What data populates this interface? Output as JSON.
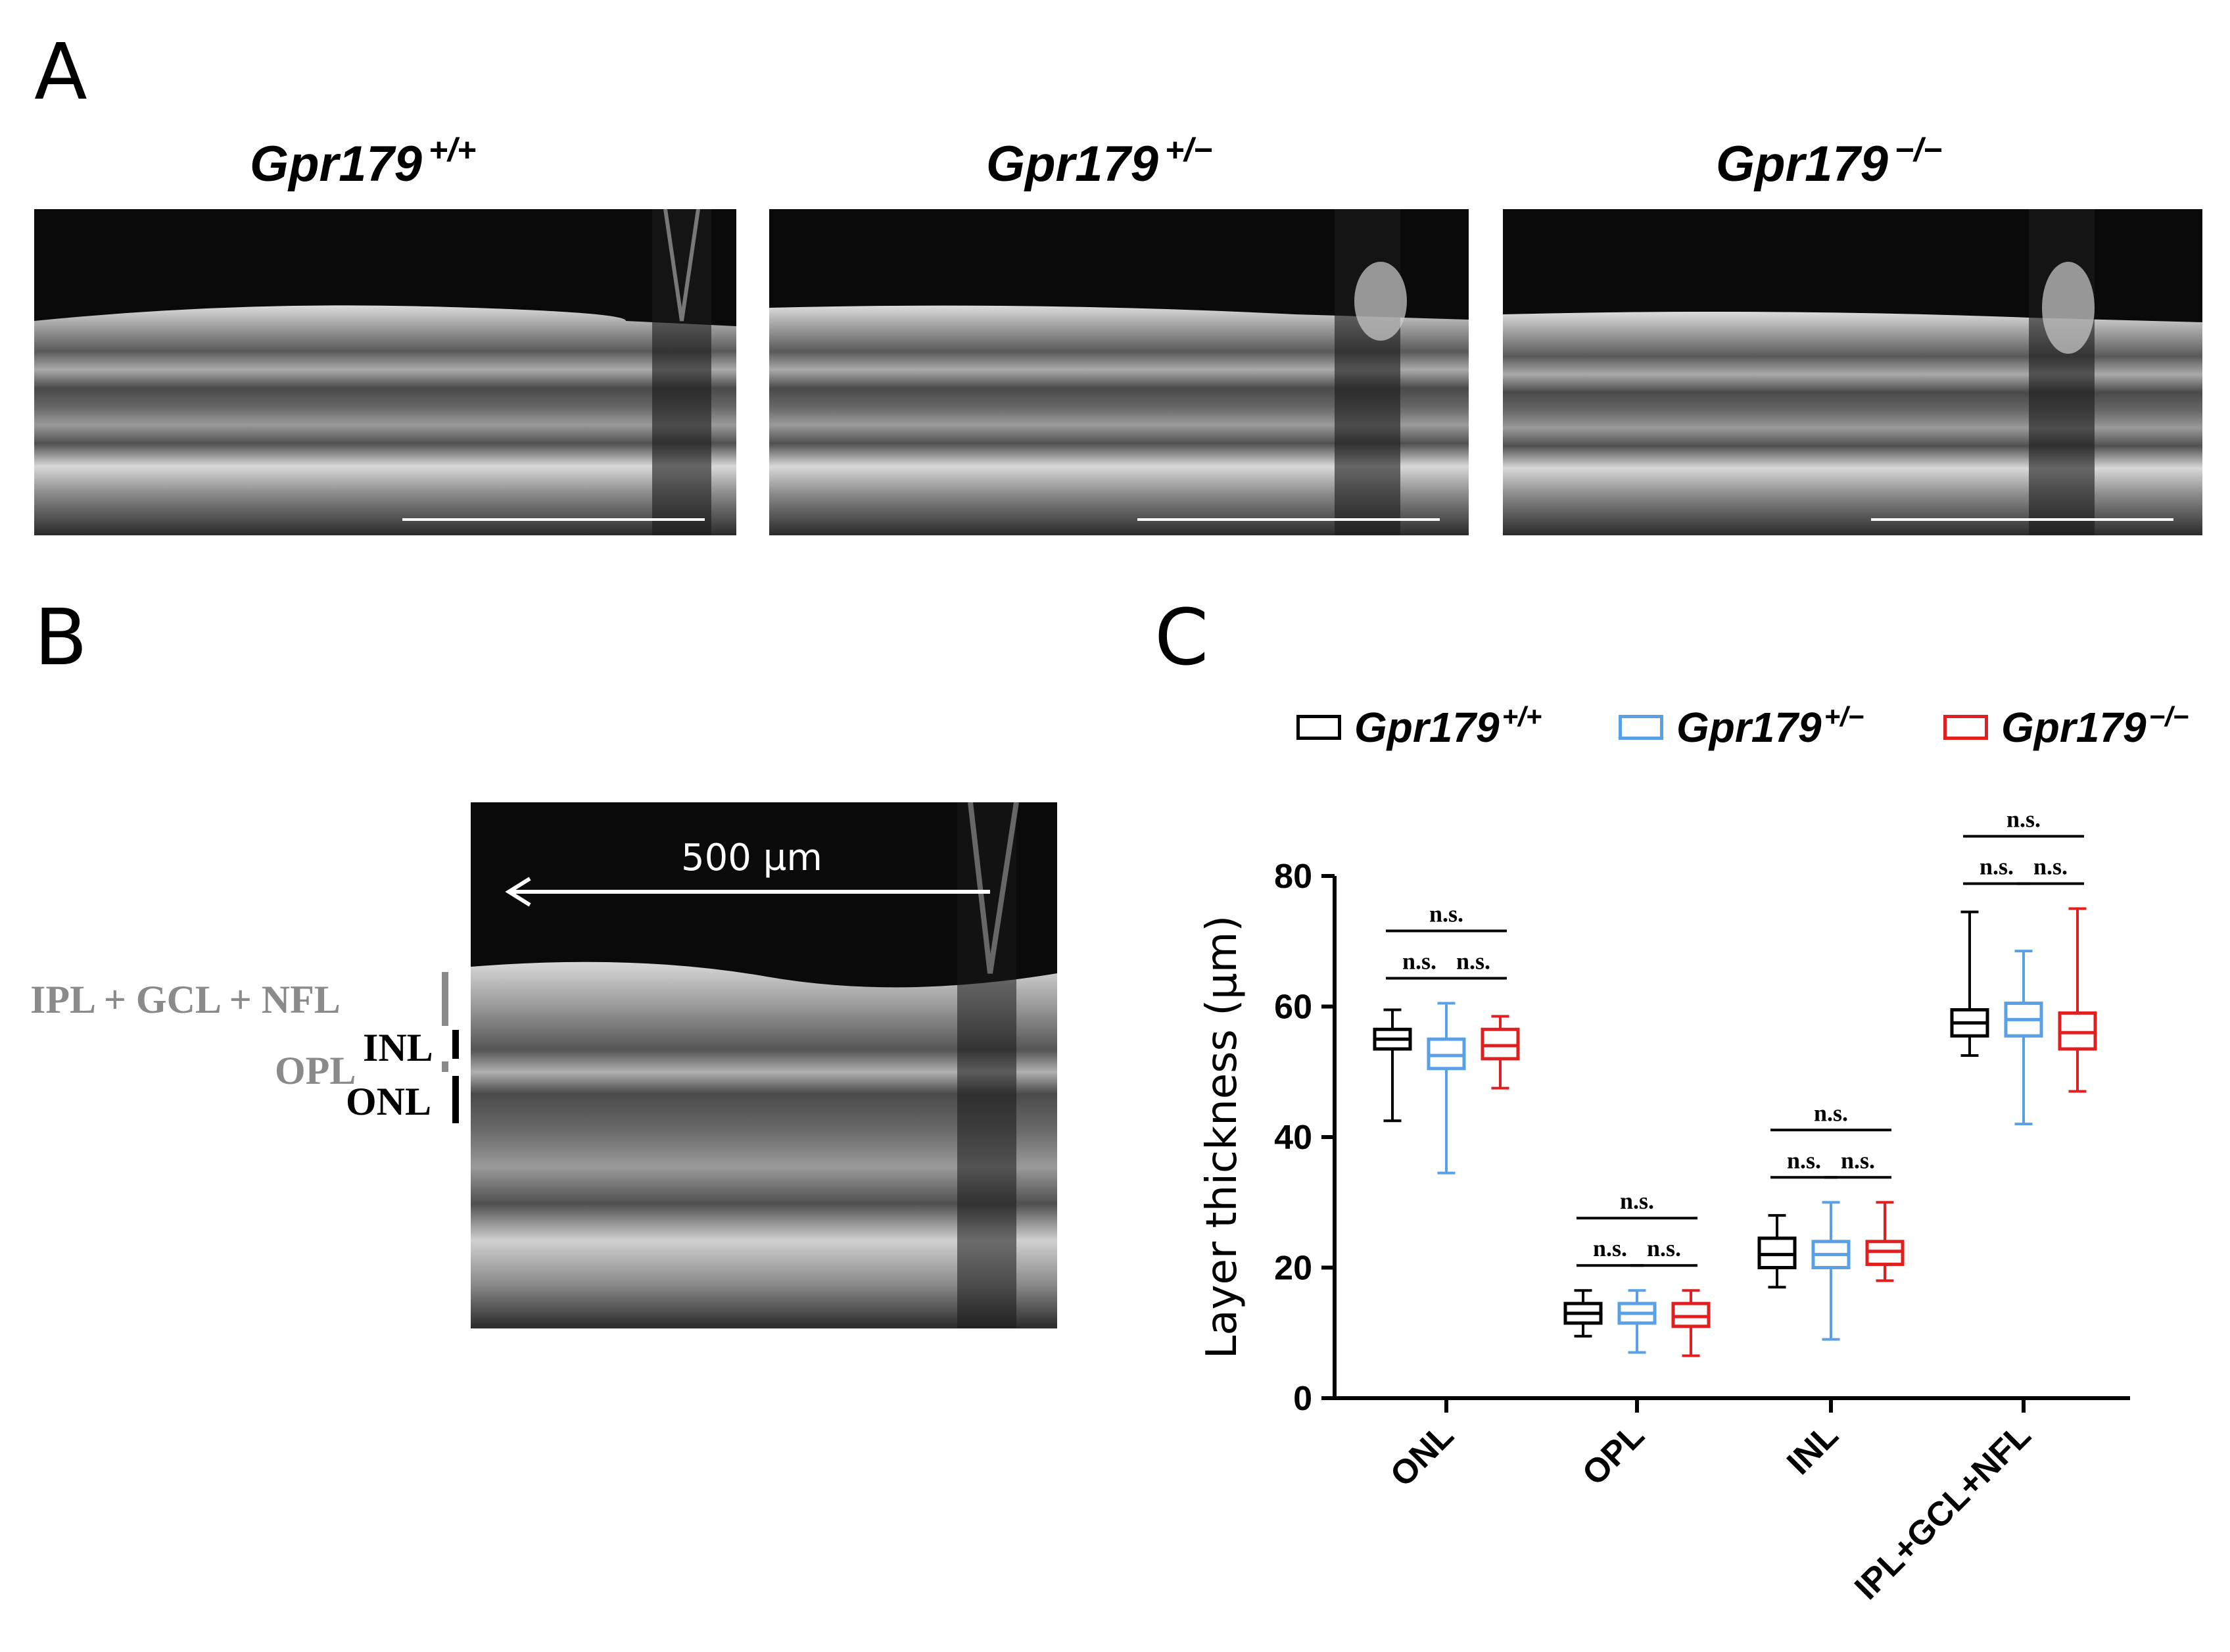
{
  "panel_a": {
    "letter": "A",
    "images": [
      {
        "gene": "Gpr179",
        "genotype": "+/+"
      },
      {
        "gene": "Gpr179",
        "genotype": "+/−"
      },
      {
        "gene": "Gpr179",
        "genotype": "−/−"
      }
    ]
  },
  "panel_b": {
    "letter": "B",
    "scale_label": "500 µm",
    "layers": {
      "ipl_gcl_nfl": "IPL + GCL + NFL",
      "inl": "INL",
      "opl": "OPL",
      "onl": "ONL"
    }
  },
  "panel_c": {
    "letter": "C",
    "legend": [
      {
        "gene": "Gpr179",
        "genotype": "+/+",
        "color": "#000000"
      },
      {
        "gene": "Gpr179",
        "genotype": "+/−",
        "color": "#5aa0e6"
      },
      {
        "gene": "Gpr179",
        "genotype": "−/−",
        "color": "#e02020"
      }
    ]
  },
  "chart_data": {
    "type": "box",
    "ylabel": "Layer thickness (µm)",
    "ylim": [
      0,
      80
    ],
    "yticks": [
      0,
      20,
      40,
      60,
      80
    ],
    "categories": [
      "ONL",
      "OPL",
      "INL",
      "IPL+GCL+NFL"
    ],
    "series": [
      {
        "name": "Gpr179+/+",
        "color": "#000000",
        "boxes": [
          {
            "min": 42.5,
            "q1": 53.5,
            "median": 55,
            "q3": 56.5,
            "max": 59.5
          },
          {
            "min": 9.5,
            "q1": 11.5,
            "median": 13,
            "q3": 14.5,
            "max": 16.5
          },
          {
            "min": 17,
            "q1": 20,
            "median": 22,
            "q3": 24.5,
            "max": 28
          },
          {
            "min": 52.5,
            "q1": 55.5,
            "median": 57.5,
            "q3": 59.5,
            "max": 74.5
          }
        ]
      },
      {
        "name": "Gpr179+/−",
        "color": "#5aa0e6",
        "boxes": [
          {
            "min": 34.5,
            "q1": 50.5,
            "median": 52.5,
            "q3": 55,
            "max": 60.5
          },
          {
            "min": 7,
            "q1": 11.5,
            "median": 13,
            "q3": 14.5,
            "max": 16.5
          },
          {
            "min": 9,
            "q1": 20,
            "median": 22,
            "q3": 24,
            "max": 30
          },
          {
            "min": 42,
            "q1": 55.5,
            "median": 58,
            "q3": 60.5,
            "max": 68.5
          }
        ]
      },
      {
        "name": "Gpr179−/−",
        "color": "#e02020",
        "boxes": [
          {
            "min": 47.5,
            "q1": 52,
            "median": 54,
            "q3": 56.5,
            "max": 58.5
          },
          {
            "min": 6.5,
            "q1": 11,
            "median": 12.5,
            "q3": 14.5,
            "max": 16.5
          },
          {
            "min": 18,
            "q1": 20.5,
            "median": 22.5,
            "q3": 24,
            "max": 30
          },
          {
            "min": 47,
            "q1": 53.5,
            "median": 56,
            "q3": 59,
            "max": 75
          }
        ]
      }
    ],
    "significance": [
      "n.s.",
      "n.s.",
      "n.s.",
      "n.s.",
      "n.s.",
      "n.s.",
      "n.s.",
      "n.s.",
      "n.s.",
      "n.s.",
      "n.s.",
      "n.s."
    ],
    "grid": false
  }
}
